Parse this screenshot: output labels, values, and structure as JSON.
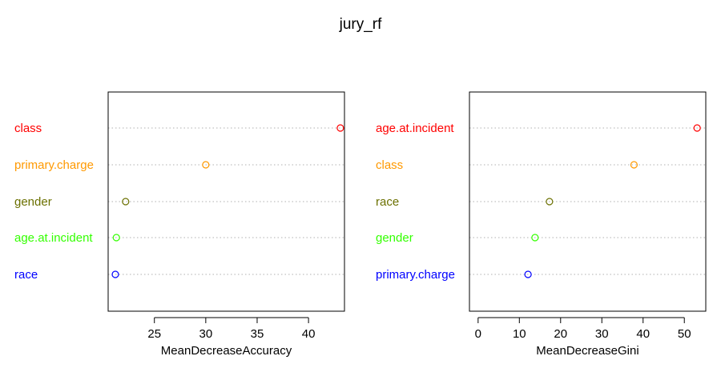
{
  "title": "jury_rf",
  "chart_data": [
    {
      "type": "scatter",
      "subtype": "dotchart",
      "xlabel": "MeanDecreaseAccuracy",
      "xticks": [
        25,
        30,
        35,
        40
      ],
      "xlim": [
        20.5,
        43.5
      ],
      "grid": "dotted horizontal",
      "points": [
        {
          "label": "class",
          "value": 43.1,
          "color": "#ff0000"
        },
        {
          "label": "primary.charge",
          "value": 30.0,
          "color": "#ff9900"
        },
        {
          "label": "gender",
          "value": 22.2,
          "color": "#6b7000"
        },
        {
          "label": "age.at.incident",
          "value": 21.3,
          "color": "#33ff00"
        },
        {
          "label": "race",
          "value": 21.2,
          "color": "#0000ff"
        }
      ]
    },
    {
      "type": "scatter",
      "subtype": "dotchart",
      "xlabel": "MeanDecreaseGini",
      "xticks": [
        0,
        10,
        20,
        30,
        40,
        50
      ],
      "xlim": [
        -2.1,
        55.2
      ],
      "grid": "dotted horizontal",
      "points": [
        {
          "label": "age.at.incident",
          "value": 53.1,
          "color": "#ff0000"
        },
        {
          "label": "class",
          "value": 37.8,
          "color": "#ff9900"
        },
        {
          "label": "race",
          "value": 17.3,
          "color": "#6b7000"
        },
        {
          "label": "gender",
          "value": 13.8,
          "color": "#33ff00"
        },
        {
          "label": "primary.charge",
          "value": 12.1,
          "color": "#0000ff"
        }
      ]
    }
  ]
}
